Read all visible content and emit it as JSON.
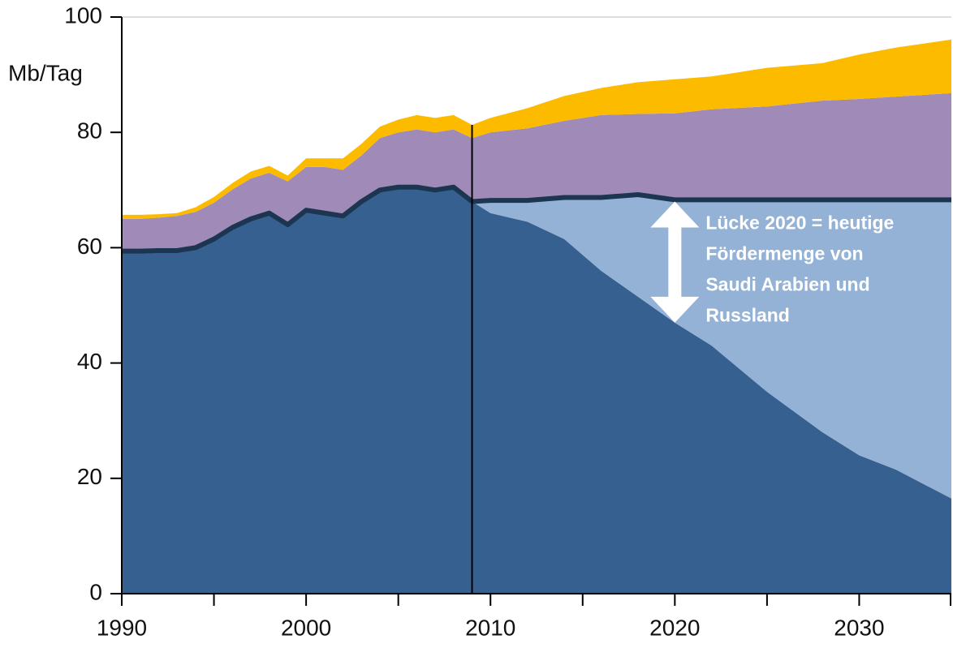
{
  "chart_data": {
    "type": "stacked_area",
    "y_label": "Mb/Tag",
    "x": [
      1990,
      1991,
      1992,
      1993,
      1994,
      1995,
      1996,
      1997,
      1998,
      1999,
      2000,
      2001,
      2002,
      2003,
      2004,
      2005,
      2006,
      2007,
      2008,
      2009,
      2010,
      2012,
      2014,
      2016,
      2018,
      2020,
      2022,
      2025,
      2028,
      2030,
      2032,
      2035
    ],
    "series": [
      {
        "color": "#36608f",
        "values": [
          59.4,
          59.4,
          59.5,
          59.5,
          60,
          61.5,
          63.5,
          65,
          66,
          64,
          66.5,
          66,
          65.5,
          68,
          70,
          70.5,
          70.5,
          70,
          70.5,
          68,
          66,
          64.5,
          61.5,
          56,
          51.5,
          47,
          43,
          35,
          28,
          24,
          21.5,
          16.5
        ]
      },
      {
        "color": "#93b2d6",
        "values": [
          0,
          0,
          0,
          0,
          0,
          0,
          0,
          0,
          0,
          0,
          0,
          0,
          0,
          0,
          0,
          0,
          0,
          0,
          0,
          0,
          2.2,
          3.7,
          7.2,
          12.7,
          17.7,
          21.3,
          25.3,
          33.3,
          40.3,
          44.3,
          46.8,
          51.8
        ]
      },
      {
        "color": "#a08ab8",
        "values": [
          5.6,
          5.6,
          5.7,
          6,
          6.2,
          6.3,
          6.6,
          7,
          7,
          7.5,
          7.5,
          8,
          8,
          8,
          9,
          9.5,
          10,
          10,
          10,
          11,
          11.8,
          12.5,
          13.3,
          14.3,
          14,
          15,
          15.7,
          16.2,
          17.2,
          17.5,
          17.9,
          18.5
        ]
      },
      {
        "color": "#fdbb00",
        "values": [
          0.7,
          0.7,
          0.6,
          0.5,
          0.8,
          1,
          1.1,
          1.2,
          1.2,
          1,
          1.5,
          1.5,
          2,
          2,
          2,
          2.2,
          2.5,
          2.5,
          2.5,
          2.3,
          2.5,
          3.5,
          4.3,
          4.7,
          5.5,
          5.9,
          5.7,
          6.7,
          6.5,
          7.7,
          8.5,
          9.3
        ]
      }
    ],
    "total_line": {
      "series_count": 2,
      "color": "#1c3550"
    },
    "divider_x": 2009,
    "arrow": {
      "x": 2020,
      "from": 47,
      "to": 68
    },
    "annotation": [
      "Lücke 2020 = heutige",
      "Fördermenge von",
      "Saudi Arabien und",
      "Russland"
    ],
    "xlim": [
      1990,
      2035
    ],
    "xticks": [
      1990,
      2000,
      2010,
      2020,
      2030
    ],
    "xminor": [
      1995,
      2005,
      2015,
      2025,
      2035
    ],
    "ylim": [
      0,
      100
    ],
    "yticks": [
      0,
      20,
      40,
      60,
      80,
      100
    ]
  }
}
